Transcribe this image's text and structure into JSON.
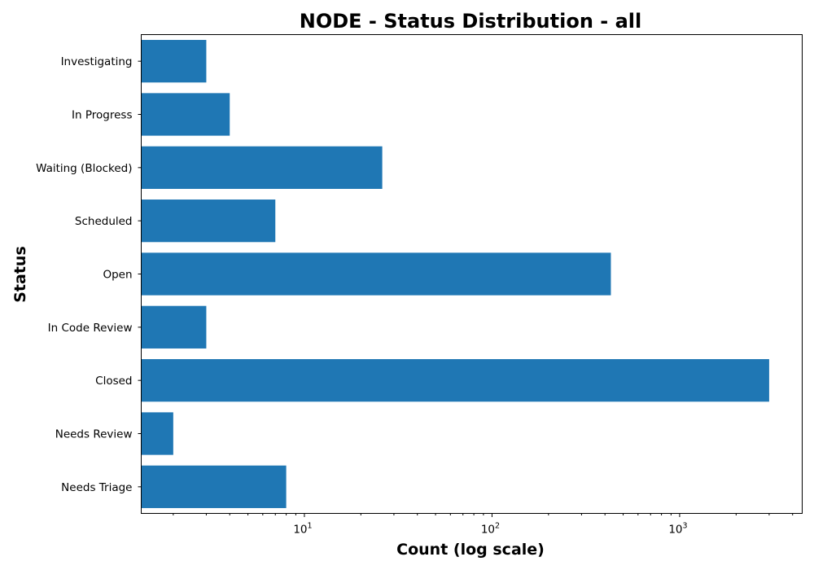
{
  "chart_data": {
    "type": "bar",
    "orientation": "horizontal",
    "title": "NODE - Status Distribution - all",
    "xlabel": "Count (log scale)",
    "ylabel": "Status",
    "x_scale": "log",
    "xlim": [
      1.35,
      4500
    ],
    "categories": [
      "Needs Triage",
      "Needs Review",
      "Closed",
      "In Code Review",
      "Open",
      "Scheduled",
      "Waiting (Blocked)",
      "In Progress",
      "Investigating"
    ],
    "values": [
      8,
      2,
      3000,
      3,
      430,
      7,
      26,
      4,
      3
    ],
    "x_major_ticks": [
      {
        "value": 10,
        "base": "10",
        "exp": "1"
      },
      {
        "value": 100,
        "base": "10",
        "exp": "2"
      },
      {
        "value": 1000,
        "base": "10",
        "exp": "3"
      }
    ],
    "bar_color": "#1f77b4",
    "grid": false,
    "legend": "none"
  }
}
